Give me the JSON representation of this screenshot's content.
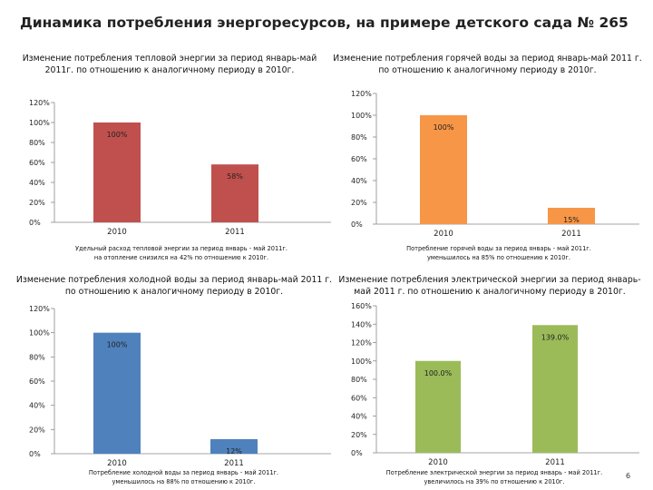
{
  "title": "Динамика потребления энергоресурсов, на примере детского сада № 265",
  "page_number": "6",
  "chart_data": [
    {
      "type": "bar",
      "title": "Изменение потребления тепловой энергии за период январь-май 2011г. по отношению к аналогичному периоду в 2010г.",
      "categories": [
        "2010",
        "2011"
      ],
      "values": [
        100,
        58
      ],
      "value_labels": [
        "100%",
        "58%"
      ],
      "y_ticks": [
        "0%",
        "20%",
        "40%",
        "60%",
        "80%",
        "100%",
        "120%"
      ],
      "ylim": [
        0,
        120
      ],
      "color": "#C0504D",
      "note_lines": [
        "Удельный расход тепловой энергии за период январь - май 2011г.",
        "на отопление снизился на 42% по отношению к 2010г."
      ]
    },
    {
      "type": "bar",
      "title": "Изменение потребления горячей воды за период январь-май 2011 г. по отношению к аналогичному периоду в 2010г.",
      "categories": [
        "2010",
        "2011"
      ],
      "values": [
        100,
        15
      ],
      "value_labels": [
        "100%",
        "15%"
      ],
      "y_ticks": [
        "0%",
        "20%",
        "40%",
        "60%",
        "80%",
        "100%",
        "120%"
      ],
      "ylim": [
        0,
        120
      ],
      "color": "#F79646",
      "note_lines": [
        "Потребление горячей воды за период январь - май 2011г.",
        "уменьшилось на 85% по отношению к 2010г."
      ]
    },
    {
      "type": "bar",
      "title": "Изменение потребления холодной воды за период январь-май 2011 г. по отношению к аналогичному периоду в 2010г.",
      "categories": [
        "2010",
        "2011"
      ],
      "values": [
        100,
        12
      ],
      "value_labels": [
        "100%",
        "12%"
      ],
      "y_ticks": [
        "0%",
        "20%",
        "40%",
        "60%",
        "80%",
        "100%",
        "120%"
      ],
      "ylim": [
        0,
        120
      ],
      "color": "#4F81BD",
      "note_lines": [
        "Потребление холодной воды за период январь - май 2011г.",
        "уменьшилось на 88% по отношению к 2010г."
      ]
    },
    {
      "type": "bar",
      "title": "Изменение потребления электрической энергии за период январь-май 2011 г. по отношению к аналогичному периоду в 2010г.",
      "categories": [
        "2010",
        "2011"
      ],
      "values": [
        100,
        139
      ],
      "value_labels": [
        "100.0%",
        "139.0%"
      ],
      "y_ticks": [
        "0%",
        "20%",
        "40%",
        "60%",
        "80%",
        "100%",
        "120%",
        "140%",
        "160%"
      ],
      "ylim": [
        0,
        160
      ],
      "color": "#9BBB59",
      "note_lines": [
        "Потребление электрической энергии за период январь - май 2011г.",
        "увеличилось на 39% по отношению к 2010г."
      ]
    }
  ]
}
